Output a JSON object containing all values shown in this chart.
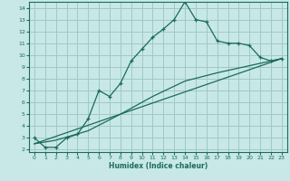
{
  "xlabel": "Humidex (Indice chaleur)",
  "bg_color": "#c8e8e8",
  "grid_color": "#a0c8c8",
  "line_color": "#1a6b5a",
  "xlim": [
    -0.5,
    23.5
  ],
  "ylim": [
    1.8,
    14.5
  ],
  "yticks": [
    2,
    3,
    4,
    5,
    6,
    7,
    8,
    9,
    10,
    11,
    12,
    13,
    14
  ],
  "xticks": [
    0,
    1,
    2,
    3,
    4,
    5,
    6,
    7,
    8,
    9,
    10,
    11,
    12,
    13,
    14,
    15,
    16,
    17,
    18,
    19,
    20,
    21,
    22,
    23
  ],
  "line1_x": [
    0,
    1,
    2,
    3,
    4,
    5,
    6,
    7,
    8,
    9,
    10,
    11,
    12,
    13,
    14,
    15,
    16,
    17,
    18,
    19,
    20,
    21,
    22,
    23
  ],
  "line1_y": [
    3.0,
    2.2,
    2.2,
    3.0,
    3.3,
    4.6,
    7.0,
    6.5,
    7.6,
    9.5,
    10.5,
    11.5,
    12.2,
    13.0,
    14.5,
    13.0,
    12.8,
    11.2,
    11.0,
    11.0,
    10.8,
    9.8,
    9.5,
    9.7
  ],
  "line2_x": [
    0,
    23
  ],
  "line2_y": [
    2.5,
    9.7
  ],
  "line3_x": [
    0,
    2,
    5,
    8,
    11,
    14,
    17,
    20,
    23
  ],
  "line3_y": [
    2.5,
    2.8,
    3.6,
    5.0,
    6.5,
    7.8,
    8.5,
    9.1,
    9.7
  ]
}
